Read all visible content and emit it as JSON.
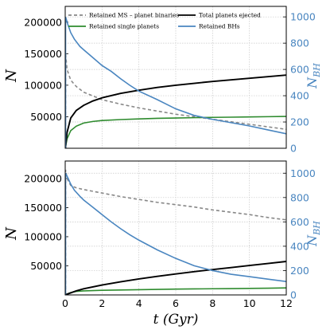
{
  "chart_data": [
    {
      "type": "line",
      "panel": "top",
      "ylabel": "N",
      "ylabel_right": "N_BH",
      "xlim": [
        0,
        12
      ],
      "ylim": [
        0,
        225000
      ],
      "ylim_right": [
        0,
        1080
      ],
      "x_ticks": [
        "0",
        "2",
        "4",
        "6",
        "8",
        "10",
        "12"
      ],
      "y_ticks": [
        "50000",
        "100000",
        "150000",
        "200000"
      ],
      "y_ticks_right": [
        "0",
        "200",
        "400",
        "600",
        "800",
        "1000"
      ],
      "grid": true,
      "legend_position": "top",
      "series": [
        {
          "name": "Retained MS – planet binaries",
          "axis": "left",
          "color": "#888888",
          "style": "dashed",
          "x": [
            0.02,
            0.1,
            0.3,
            0.6,
            1,
            1.5,
            2,
            3,
            4,
            5,
            6,
            7,
            8,
            9,
            10,
            11,
            12
          ],
          "y": [
            150000,
            125000,
            108000,
            98000,
            89000,
            83000,
            77000,
            70000,
            64000,
            59000,
            54000,
            50000,
            46000,
            42000,
            38000,
            34000,
            30000
          ]
        },
        {
          "name": "Retained single planets",
          "axis": "left",
          "color": "#2e8b2e",
          "style": "solid",
          "x": [
            0.02,
            0.1,
            0.3,
            0.6,
            1,
            1.5,
            2,
            3,
            4,
            5,
            6,
            7,
            8,
            9,
            10,
            11,
            12
          ],
          "y": [
            2000,
            15000,
            28000,
            35000,
            40000,
            42500,
            44000,
            45500,
            46500,
            47500,
            48000,
            48500,
            49000,
            49300,
            49700,
            50100,
            50500
          ]
        },
        {
          "name": "Total planets ejected",
          "axis": "left",
          "color": "#000000",
          "style": "solid",
          "x": [
            0.02,
            0.1,
            0.3,
            0.6,
            1,
            1.5,
            2,
            3,
            4,
            5,
            6,
            7,
            8,
            9,
            10,
            11,
            12
          ],
          "y": [
            2000,
            25000,
            48000,
            60000,
            68000,
            75000,
            80000,
            87000,
            92000,
            96500,
            100000,
            103000,
            106000,
            108500,
            111000,
            113500,
            116000
          ]
        },
        {
          "name": "Retained BHs",
          "axis": "right",
          "color": "#4a86c0",
          "style": "solid",
          "x": [
            0.02,
            0.15,
            0.3,
            0.5,
            0.8,
            1,
            1.5,
            2,
            2.5,
            3,
            3.5,
            4,
            5,
            6,
            7,
            8,
            9,
            10,
            11,
            12
          ],
          "y": [
            1000,
            940,
            880,
            830,
            775,
            750,
            690,
            630,
            585,
            530,
            480,
            435,
            370,
            300,
            250,
            220,
            195,
            170,
            140,
            110
          ]
        }
      ]
    },
    {
      "type": "line",
      "panel": "bottom",
      "ylabel": "N",
      "ylabel_right": "N_BH",
      "xlabel": "t (Gyr)",
      "xlim": [
        0,
        12
      ],
      "ylim": [
        0,
        230000
      ],
      "ylim_right": [
        0,
        1100
      ],
      "x_ticks": [
        "0",
        "2",
        "4",
        "6",
        "8",
        "10",
        "12"
      ],
      "y_ticks": [
        "50000",
        "100000",
        "150000",
        "200000"
      ],
      "y_ticks_right": [
        "0",
        "200",
        "400",
        "600",
        "800",
        "1000"
      ],
      "grid": true,
      "series": [
        {
          "name": "Retained MS – planet binaries",
          "axis": "left",
          "color": "#888888",
          "style": "dashed",
          "x": [
            0.02,
            0.1,
            0.3,
            0.6,
            1,
            2,
            3,
            4,
            5,
            6,
            7,
            8,
            9,
            10,
            11,
            12
          ],
          "y": [
            215000,
            200000,
            188000,
            184000,
            181000,
            175000,
            169000,
            164000,
            159000,
            155000,
            151000,
            146000,
            142000,
            138000,
            133000,
            129000
          ]
        },
        {
          "name": "Retained single planets",
          "axis": "left",
          "color": "#2e8b2e",
          "style": "solid",
          "x": [
            0.02,
            0.3,
            0.6,
            1,
            2,
            3,
            4,
            5,
            6,
            7,
            8,
            9,
            10,
            11,
            12
          ],
          "y": [
            500,
            4000,
            6000,
            7000,
            8000,
            8500,
            9000,
            9500,
            10000,
            10300,
            10600,
            10900,
            11200,
            11600,
            12000
          ]
        },
        {
          "name": "Total planets ejected",
          "axis": "left",
          "color": "#000000",
          "style": "solid",
          "x": [
            0.02,
            0.3,
            0.6,
            1,
            2,
            3,
            4,
            5,
            6,
            7,
            8,
            9,
            10,
            11,
            12
          ],
          "y": [
            500,
            3500,
            7000,
            10500,
            17000,
            22500,
            27500,
            32000,
            36000,
            40000,
            43500,
            47000,
            50500,
            54000,
            57500
          ]
        },
        {
          "name": "Retained BHs",
          "axis": "right",
          "color": "#4a86c0",
          "style": "solid",
          "x": [
            0.02,
            0.15,
            0.3,
            0.5,
            0.8,
            1,
            1.5,
            2,
            2.5,
            3,
            3.5,
            4,
            5,
            6,
            7,
            8,
            9,
            10,
            11,
            12
          ],
          "y": [
            1000,
            960,
            910,
            860,
            810,
            780,
            720,
            660,
            600,
            545,
            495,
            450,
            370,
            300,
            240,
            200,
            170,
            150,
            130,
            110
          ]
        }
      ]
    }
  ],
  "legend": {
    "items": [
      {
        "label": "Retained MS – planet binaries",
        "color": "#888888",
        "style": "dashed"
      },
      {
        "label": "Retained single planets",
        "color": "#2e8b2e",
        "style": "solid"
      },
      {
        "label": "Total planets ejected",
        "color": "#000000",
        "style": "solid"
      },
      {
        "label": "Retained BHs",
        "color": "#4a86c0",
        "style": "solid"
      }
    ]
  },
  "labels": {
    "ylabel_top": "N",
    "ylabel_bottom": "N",
    "ylabel_right_main": "N",
    "ylabel_right_sub": "BH",
    "xlabel": "t (Gyr)"
  }
}
